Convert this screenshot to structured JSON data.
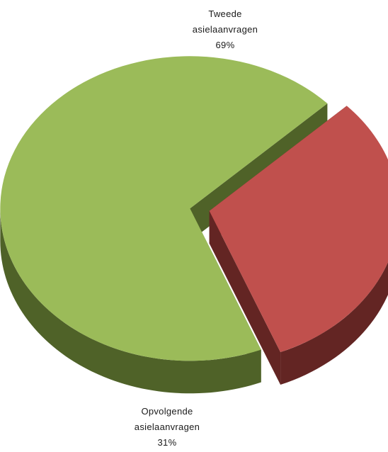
{
  "chart_data": {
    "type": "pie",
    "title": "",
    "slices": [
      {
        "label_lines": [
          "Tweede",
          "asielaanvragen"
        ],
        "percent_label": "69%",
        "value": 69,
        "color": "#9bbb59",
        "side_color": "#4f6228"
      },
      {
        "label_lines": [
          "Opvolgende",
          "asielaanvragen"
        ],
        "percent_label": "31%",
        "value": 31,
        "color": "#c0504d",
        "side_color": "#632523"
      }
    ],
    "style": "3d-exploded",
    "legend": "none"
  }
}
